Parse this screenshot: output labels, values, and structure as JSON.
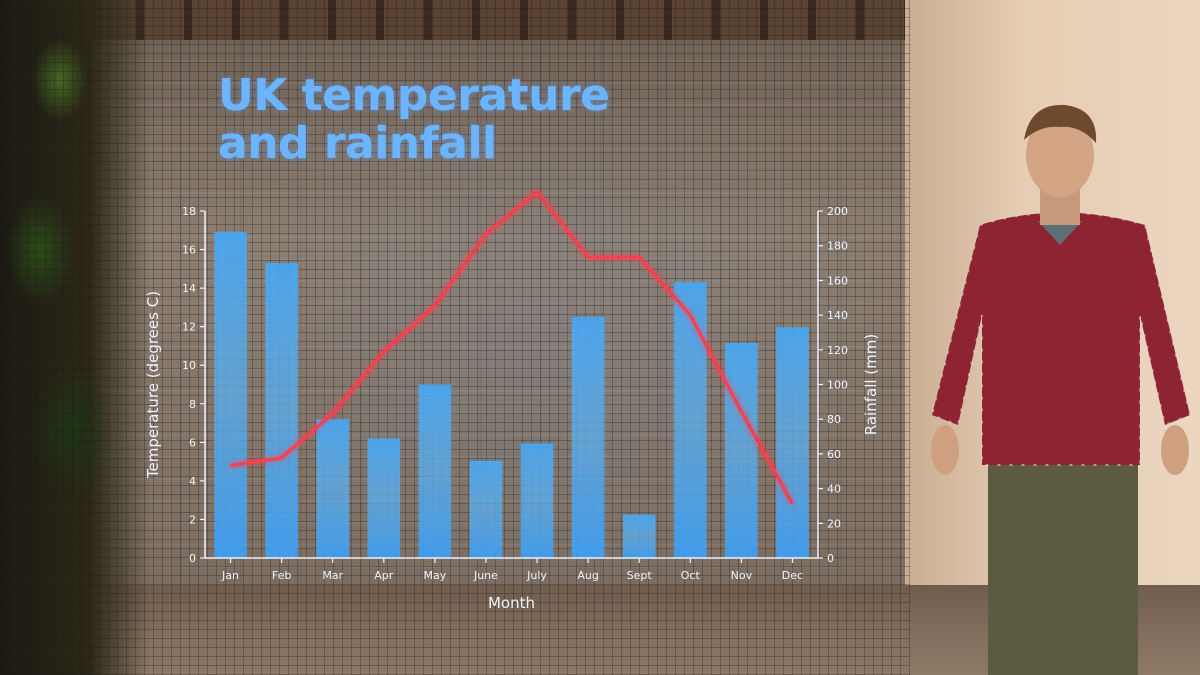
{
  "chart_data": {
    "type": "bar+line",
    "title_lines": [
      "UK temperature",
      "and rainfall"
    ],
    "categories": [
      "Jan",
      "Feb",
      "Mar",
      "Apr",
      "May",
      "June",
      "July",
      "Aug",
      "Sept",
      "Oct",
      "Nov",
      "Dec"
    ],
    "xlabel": "Month",
    "ylabel_left": "Temperature (degrees C)",
    "ylabel_right": "Rainfall (mm)",
    "ylim_left": [
      0,
      18
    ],
    "ylim_right": [
      0,
      200
    ],
    "yticks_left": [
      0,
      2,
      4,
      6,
      8,
      10,
      12,
      14,
      16,
      18
    ],
    "yticks_right": [
      0,
      20,
      40,
      60,
      80,
      100,
      120,
      140,
      160,
      180,
      200
    ],
    "series": [
      {
        "type": "bar",
        "axis": "right",
        "values": [
          188,
          170,
          80,
          69,
          100,
          56,
          66,
          139,
          25,
          159,
          124,
          133
        ]
      },
      {
        "type": "line",
        "axis": "left",
        "values": [
          4.8,
          5.2,
          7.5,
          10.7,
          13.1,
          16.8,
          19.0,
          15.6,
          15.6,
          12.6,
          7.6,
          2.8
        ]
      }
    ],
    "colors": {
      "bar": "#4aa6f0",
      "line": "#ff3d4d",
      "title": "#6cb4ff",
      "axis": "#eef3ff"
    },
    "grid": false
  }
}
